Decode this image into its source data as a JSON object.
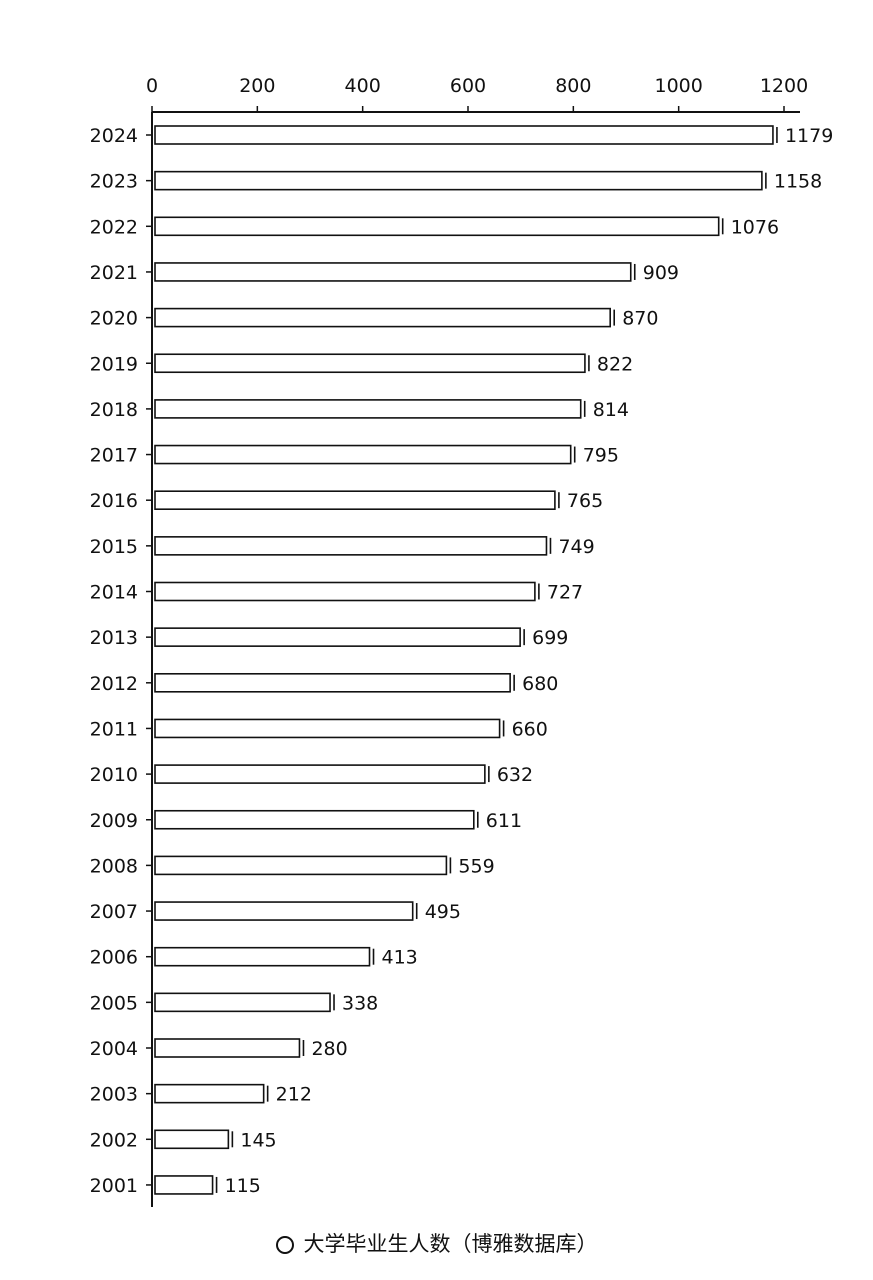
{
  "chart_data": {
    "type": "bar",
    "orientation": "horizontal",
    "categories": [
      "2024",
      "2023",
      "2022",
      "2021",
      "2020",
      "2019",
      "2018",
      "2017",
      "2016",
      "2015",
      "2014",
      "2013",
      "2012",
      "2011",
      "2010",
      "2009",
      "2008",
      "2007",
      "2006",
      "2005",
      "2004",
      "2003",
      "2002",
      "2001"
    ],
    "values": [
      1179,
      1158,
      1076,
      909,
      870,
      822,
      814,
      795,
      765,
      749,
      727,
      699,
      680,
      660,
      632,
      611,
      559,
      495,
      413,
      338,
      280,
      212,
      145,
      115
    ],
    "value_labels": [
      "1179",
      "1158",
      "1076",
      "909",
      "870",
      "822",
      "814",
      "795",
      "765",
      "749",
      "727",
      "699",
      "680",
      "660",
      "632",
      "611",
      "559",
      "495",
      "413",
      "338",
      "280",
      "212",
      "145",
      "115"
    ],
    "title": "",
    "caption": "大学毕业生人数（博雅数据库）",
    "xlabel": "",
    "ylabel": "",
    "xlim": [
      0,
      1200
    ],
    "xticks": [
      "0",
      "200",
      "400",
      "600",
      "800",
      "1000",
      "1200"
    ],
    "axis_position": "top",
    "grid": false,
    "legend": "none",
    "bar_color": "#ffffff",
    "bar_stroke": "#111111"
  }
}
